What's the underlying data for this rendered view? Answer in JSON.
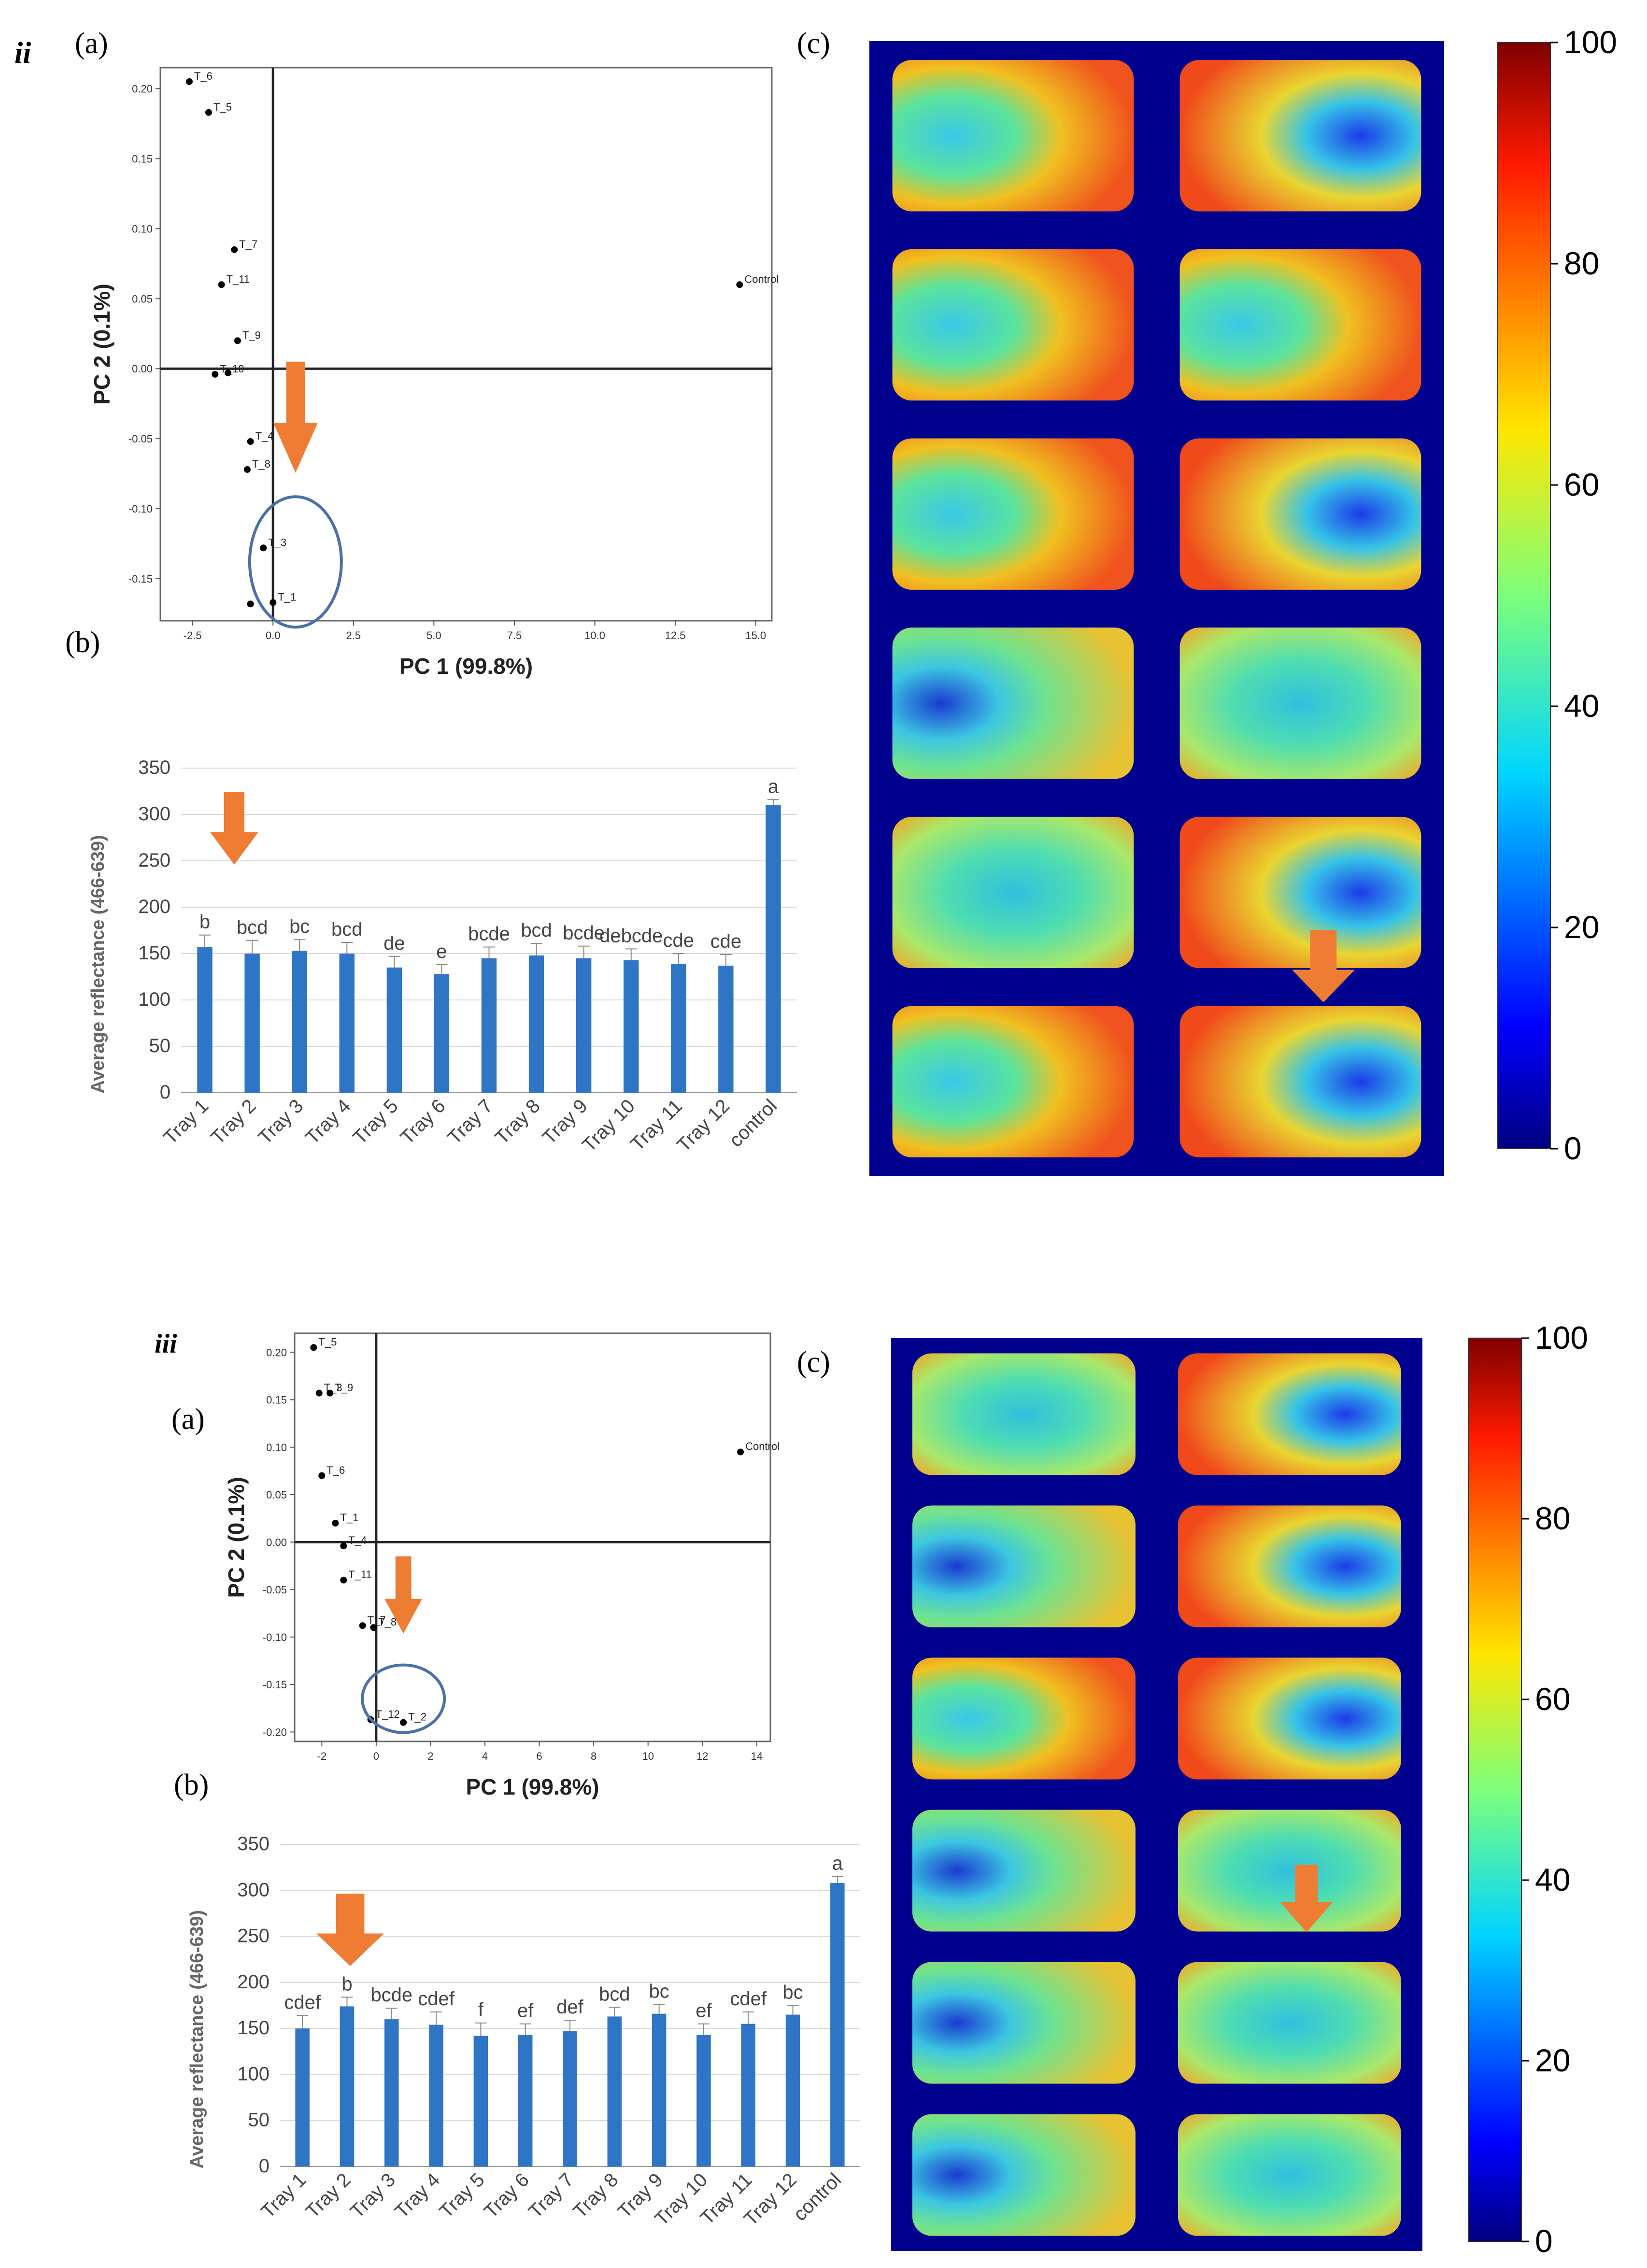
{
  "figure": {
    "colors": {
      "bar": "#2E75C6",
      "arrow": "#EF7C33",
      "circle": "#4A70A8",
      "heatmap_bg": "#00008F",
      "axis": "#000000",
      "grid": "#D9D9D9"
    },
    "colorbar_ticks": [
      "100",
      "80",
      "60",
      "40",
      "20",
      "0"
    ],
    "sections": [
      {
        "id": "ii",
        "label": "ii",
        "pca": {
          "label": "(a)",
          "xlabel": "PC 1 (99.8%)",
          "ylabel": "PC 2 (0.1%)",
          "xticks": [
            "-2.5",
            "0.0",
            "2.5",
            "5.0",
            "7.5",
            "10.0",
            "12.5",
            "15.0"
          ],
          "yticks": [
            "0.20",
            "0.15",
            "0.10",
            "0.05",
            "0.00",
            "-0.05",
            "-0.10",
            "-0.15"
          ],
          "points": [
            {
              "label": "T_6",
              "x": -2.6,
              "y": 0.205
            },
            {
              "label": "T_5",
              "x": -2.0,
              "y": 0.183
            },
            {
              "label": "T_7",
              "x": -1.2,
              "y": 0.085
            },
            {
              "label": "T_11",
              "x": -1.6,
              "y": 0.06
            },
            {
              "label": "T_9",
              "x": -1.1,
              "y": 0.02
            },
            {
              "label": "T_10",
              "x": -1.8,
              "y": -0.004
            },
            {
              "label": "",
              "x": -1.4,
              "y": -0.003
            },
            {
              "label": "T_4",
              "x": -0.7,
              "y": -0.052
            },
            {
              "label": "T_8",
              "x": -0.8,
              "y": -0.072
            },
            {
              "label": "T_3",
              "x": -0.3,
              "y": -0.128
            },
            {
              "label": "T_1",
              "x": 0.0,
              "y": -0.167
            },
            {
              "label": "",
              "x": -0.7,
              "y": -0.168
            },
            {
              "label": "Control",
              "x": 14.5,
              "y": 0.06
            }
          ]
        },
        "bars": {
          "label": "(b)",
          "ylabel": "Average reflectance (466-639)",
          "yticks": [
            "350",
            "300",
            "250",
            "200",
            "150",
            "100",
            "50",
            "0"
          ],
          "categories": [
            "Tray 1",
            "Tray 2",
            "Tray 3",
            "Tray 4",
            "Tray 5",
            "Tray 6",
            "Tray 7",
            "Tray 8",
            "Tray 9",
            "Tray 10",
            "Tray 11",
            "Tray 12",
            "control"
          ],
          "letters": [
            "b",
            "bcd",
            "bc",
            "bcd",
            "de",
            "e",
            "bcde",
            "bcd",
            "bcde",
            "debcde",
            "cde",
            "cde",
            "a"
          ]
        },
        "heatmap_label": "(c)"
      },
      {
        "id": "iii",
        "label": "iii",
        "pca": {
          "label": "(a)",
          "xlabel": "PC 1 (99.8%)",
          "ylabel": "PC 2 (0.1%)",
          "xticks": [
            "-2",
            "0",
            "2",
            "4",
            "6",
            "8",
            "10",
            "12",
            "14"
          ],
          "yticks": [
            "0.20",
            "0.15",
            "0.10",
            "0.05",
            "0.00",
            "-0.05",
            "-0.10",
            "-0.15",
            "-0.20"
          ],
          "points": [
            {
              "label": "T_5",
              "x": -2.3,
              "y": 0.205
            },
            {
              "label": "T_3",
              "x": -2.1,
              "y": 0.157
            },
            {
              "label": "T_9",
              "x": -1.7,
              "y": 0.157
            },
            {
              "label": "T_6",
              "x": -2.0,
              "y": 0.07
            },
            {
              "label": "T_1",
              "x": -1.5,
              "y": 0.02
            },
            {
              "label": "T_4",
              "x": -1.2,
              "y": -0.004
            },
            {
              "label": "T_11",
              "x": -1.2,
              "y": -0.04
            },
            {
              "label": "T_7",
              "x": -0.5,
              "y": -0.088
            },
            {
              "label": "T_8",
              "x": -0.1,
              "y": -0.09
            },
            {
              "label": "T_12",
              "x": -0.2,
              "y": -0.187
            },
            {
              "label": "T_2",
              "x": 1.0,
              "y": -0.19
            },
            {
              "label": "Control",
              "x": 13.4,
              "y": 0.095
            }
          ]
        },
        "bars": {
          "label": "(b)",
          "ylabel": "Average reflectance (466-639)",
          "yticks": [
            "350",
            "300",
            "250",
            "200",
            "150",
            "100",
            "50",
            "0"
          ],
          "categories": [
            "Tray 1",
            "Tray 2",
            "Tray 3",
            "Tray 4",
            "Tray 5",
            "Tray 6",
            "Tray 7",
            "Tray 8",
            "Tray 9",
            "Tray 10",
            "Tray 11",
            "Tray 12",
            "control"
          ],
          "letters": [
            "cdef",
            "b",
            "bcde",
            "cdef",
            "f",
            "ef",
            "def",
            "bcd",
            "bc",
            "ef",
            "cdef",
            "bc",
            "a"
          ]
        },
        "heatmap_label": "(c)"
      }
    ]
  },
  "chart_data": [
    {
      "type": "scatter",
      "title": "ii (a)",
      "xlabel": "PC 1 (99.8%)",
      "ylabel": "PC 2 (0.1%)",
      "xlim": [
        -3.5,
        15.5
      ],
      "ylim": [
        -0.18,
        0.215
      ],
      "x": [
        -2.6,
        -2.0,
        -1.2,
        -1.6,
        -1.1,
        -1.8,
        -1.4,
        -0.7,
        -0.8,
        -0.3,
        0.0,
        -0.7,
        14.5
      ],
      "y": [
        0.205,
        0.183,
        0.085,
        0.06,
        0.02,
        -0.004,
        -0.003,
        -0.052,
        -0.072,
        -0.128,
        -0.167,
        -0.168,
        0.06
      ]
    },
    {
      "type": "bar",
      "title": "ii (b)",
      "xlabel": "",
      "ylabel": "Average reflectance (466-639)",
      "ylim": [
        0,
        350
      ],
      "categories": [
        "Tray 1",
        "Tray 2",
        "Tray 3",
        "Tray 4",
        "Tray 5",
        "Tray 6",
        "Tray 7",
        "Tray 8",
        "Tray 9",
        "Tray 10",
        "Tray 11",
        "Tray 12",
        "control"
      ],
      "values": [
        157,
        150,
        153,
        150,
        135,
        128,
        145,
        148,
        145,
        143,
        139,
        137,
        310
      ],
      "errors": [
        13,
        14,
        12,
        12,
        12,
        10,
        12,
        13,
        13,
        12,
        11,
        12,
        6
      ]
    },
    {
      "type": "scatter",
      "title": "iii (a)",
      "xlabel": "PC 1 (99.8%)",
      "ylabel": "PC 2 (0.1%)",
      "xlim": [
        -3,
        14.5
      ],
      "ylim": [
        -0.21,
        0.22
      ],
      "x": [
        -2.3,
        -2.1,
        -1.7,
        -2.0,
        -1.5,
        -1.2,
        -1.2,
        -0.5,
        -0.1,
        -0.2,
        1.0,
        13.4
      ],
      "y": [
        0.205,
        0.157,
        0.157,
        0.07,
        0.02,
        -0.004,
        -0.04,
        -0.088,
        -0.09,
        -0.187,
        -0.19,
        0.095
      ]
    },
    {
      "type": "bar",
      "title": "iii (b)",
      "xlabel": "",
      "ylabel": "Average reflectance (466-639)",
      "ylim": [
        0,
        350
      ],
      "categories": [
        "Tray 1",
        "Tray 2",
        "Tray 3",
        "Tray 4",
        "Tray 5",
        "Tray 6",
        "Tray 7",
        "Tray 8",
        "Tray 9",
        "Tray 10",
        "Tray 11",
        "Tray 12",
        "control"
      ],
      "values": [
        150,
        174,
        160,
        154,
        142,
        143,
        147,
        163,
        166,
        143,
        155,
        165,
        308
      ],
      "errors": [
        14,
        10,
        12,
        14,
        14,
        12,
        12,
        10,
        10,
        12,
        13,
        10,
        7
      ]
    }
  ]
}
